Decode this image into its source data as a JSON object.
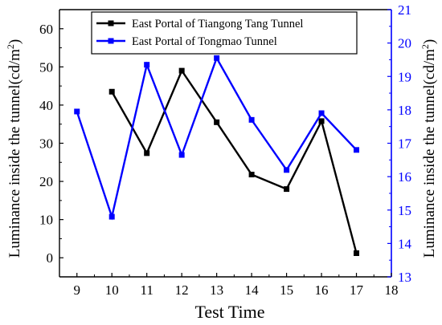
{
  "chart_data": {
    "type": "line",
    "xlabel": "Test Time",
    "xlim": [
      8.5,
      18
    ],
    "xticks": [
      9,
      10,
      11,
      12,
      13,
      14,
      15,
      16,
      17,
      18
    ],
    "left_axis": {
      "label": "Luminance inside the tunnel(cd/m",
      "label_sup": "2",
      "label_end": ")",
      "ylim": [
        -5,
        65
      ],
      "ticks": [
        0,
        10,
        20,
        30,
        40,
        50,
        60
      ],
      "color": "#000000"
    },
    "right_axis": {
      "label": "Luminance inside the tunnel(cd/m",
      "label_sup": "2",
      "label_end": ")",
      "ylim": [
        13,
        21
      ],
      "ticks": [
        13,
        14,
        15,
        16,
        17,
        18,
        19,
        20,
        21
      ],
      "color": "#0000ff"
    },
    "series": [
      {
        "name": "East Portal of Tiangong Tang Tunnel",
        "axis": "left",
        "color": "#000000",
        "marker": "square",
        "x": [
          10,
          11,
          12,
          13,
          14,
          15,
          16,
          17
        ],
        "y": [
          43.5,
          27.4,
          49,
          35.5,
          21.8,
          18,
          35.8,
          1.2
        ]
      },
      {
        "name": "East Portal of Tongmao Tunnel",
        "axis": "right",
        "color": "#0000ff",
        "marker": "square",
        "x": [
          9,
          10,
          11,
          12,
          13,
          14,
          15,
          16,
          17
        ],
        "y": [
          17.95,
          14.8,
          19.35,
          16.65,
          19.55,
          17.7,
          16.2,
          17.9,
          16.8
        ]
      }
    ],
    "legend_position": "top",
    "grid": false
  }
}
